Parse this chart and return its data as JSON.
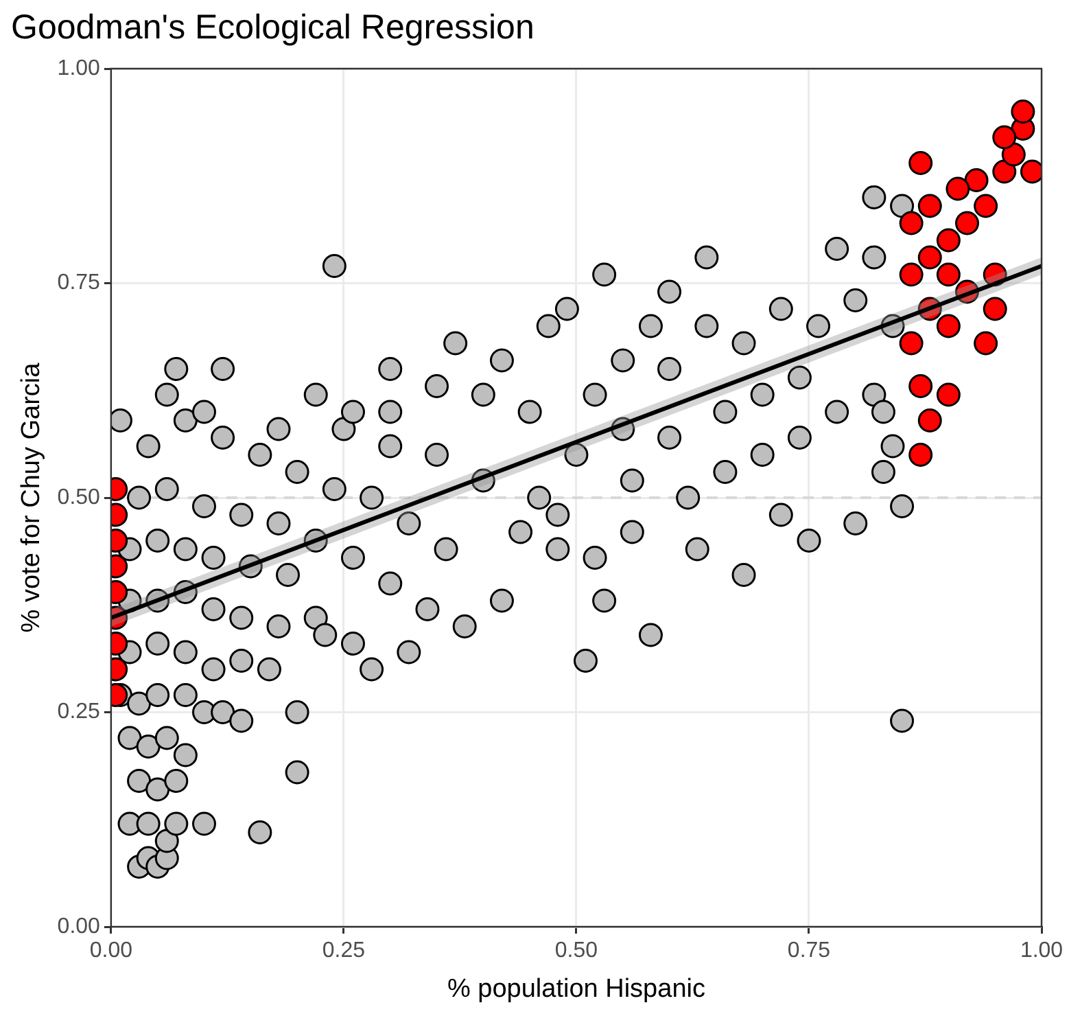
{
  "chart_data": {
    "type": "scatter",
    "title": "Goodman's Ecological Regression",
    "xlabel": "% population Hispanic",
    "ylabel": "% vote for Chuy Garcia",
    "xlim": [
      0,
      1
    ],
    "ylim": [
      0,
      1
    ],
    "xticks": [
      {
        "value": 0,
        "label": "0.00"
      },
      {
        "value": 0.25,
        "label": "0.25"
      },
      {
        "value": 0.5,
        "label": "0.50"
      },
      {
        "value": 0.75,
        "label": "0.75"
      },
      {
        "value": 1,
        "label": "1.00"
      }
    ],
    "yticks": [
      {
        "value": 0,
        "label": "0.00"
      },
      {
        "value": 0.25,
        "label": "0.25"
      },
      {
        "value": 0.5,
        "label": "0.50"
      },
      {
        "value": 0.75,
        "label": "0.75"
      },
      {
        "value": 1,
        "label": "1.00"
      }
    ],
    "grid": true,
    "legend": false,
    "marker": "circle",
    "ref_lines": [
      {
        "axis": "y",
        "value": 0.5,
        "color": "#d9d9d9",
        "line_style": "dashed"
      }
    ],
    "series": [
      {
        "type": "scatter",
        "color": "#bebebe",
        "x": [
          0.24,
          0.85,
          0.16,
          0.2,
          0.1,
          0.07,
          0.12,
          0.51,
          0.53,
          0.58,
          0.68,
          0.75,
          0.72,
          0.8,
          0.83,
          0.85,
          0.53,
          0.64,
          0.49,
          0.82,
          0.85,
          0.78,
          0.03,
          0.04,
          0.05,
          0.06,
          0.02,
          0.04,
          0.06,
          0.07,
          0.03,
          0.05,
          0.07,
          0.02,
          0.04,
          0.06,
          0.08,
          0.01,
          0.03,
          0.05,
          0.08,
          0.1,
          0.12,
          0.14,
          0.02,
          0.05,
          0.08,
          0.11,
          0.14,
          0.17,
          0.02,
          0.05,
          0.08,
          0.11,
          0.14,
          0.18,
          0.22,
          0.02,
          0.05,
          0.08,
          0.11,
          0.15,
          0.19,
          0.23,
          0.26,
          0.03,
          0.06,
          0.1,
          0.14,
          0.18,
          0.22,
          0.26,
          0.3,
          0.34,
          0.38,
          0.42,
          0.36,
          0.32,
          0.28,
          0.24,
          0.2,
          0.16,
          0.12,
          0.08,
          0.04,
          0.01,
          0.06,
          0.1,
          0.18,
          0.25,
          0.3,
          0.35,
          0.4,
          0.44,
          0.48,
          0.46,
          0.5,
          0.45,
          0.4,
          0.35,
          0.3,
          0.37,
          0.42,
          0.47,
          0.52,
          0.55,
          0.6,
          0.56,
          0.62,
          0.66,
          0.7,
          0.74,
          0.78,
          0.82,
          0.66,
          0.6,
          0.64,
          0.68,
          0.72,
          0.76,
          0.8,
          0.7,
          0.58,
          0.55,
          0.74,
          0.82,
          0.84,
          0.84,
          0.83,
          0.6,
          0.56,
          0.63,
          0.48,
          0.52,
          0.28,
          0.32,
          0.2,
          0.3,
          0.22,
          0.26
        ],
        "values": [
          0.77,
          0.24,
          0.11,
          0.18,
          0.12,
          0.65,
          0.65,
          0.31,
          0.38,
          0.34,
          0.41,
          0.45,
          0.48,
          0.47,
          0.53,
          0.49,
          0.76,
          0.78,
          0.72,
          0.85,
          0.84,
          0.79,
          0.07,
          0.08,
          0.07,
          0.08,
          0.12,
          0.12,
          0.1,
          0.12,
          0.17,
          0.16,
          0.17,
          0.22,
          0.21,
          0.22,
          0.2,
          0.27,
          0.26,
          0.27,
          0.27,
          0.25,
          0.25,
          0.24,
          0.32,
          0.33,
          0.32,
          0.3,
          0.31,
          0.3,
          0.38,
          0.38,
          0.39,
          0.37,
          0.36,
          0.35,
          0.36,
          0.44,
          0.45,
          0.44,
          0.43,
          0.42,
          0.41,
          0.34,
          0.33,
          0.5,
          0.51,
          0.49,
          0.48,
          0.47,
          0.45,
          0.43,
          0.4,
          0.37,
          0.35,
          0.38,
          0.44,
          0.47,
          0.5,
          0.51,
          0.53,
          0.55,
          0.57,
          0.59,
          0.56,
          0.59,
          0.62,
          0.6,
          0.58,
          0.58,
          0.56,
          0.55,
          0.52,
          0.46,
          0.44,
          0.5,
          0.55,
          0.6,
          0.62,
          0.63,
          0.65,
          0.68,
          0.66,
          0.7,
          0.62,
          0.58,
          0.57,
          0.52,
          0.5,
          0.53,
          0.55,
          0.57,
          0.6,
          0.62,
          0.6,
          0.65,
          0.7,
          0.68,
          0.72,
          0.7,
          0.73,
          0.62,
          0.7,
          0.66,
          0.64,
          0.78,
          0.7,
          0.56,
          0.6,
          0.74,
          0.46,
          0.44,
          0.48,
          0.43,
          0.3,
          0.32,
          0.25,
          0.6,
          0.62,
          0.6
        ]
      },
      {
        "type": "scatter",
        "color": "#ff0000",
        "x": [
          0.005,
          0.005,
          0.005,
          0.005,
          0.005,
          0.005,
          0.005,
          0.005,
          0.005,
          0.87,
          0.87,
          0.88,
          0.87,
          0.9,
          0.86,
          0.88,
          0.9,
          0.94,
          0.95,
          0.86,
          0.88,
          0.9,
          0.92,
          0.95,
          0.86,
          0.88,
          0.9,
          0.92,
          0.94,
          0.93,
          0.96,
          0.97,
          0.98,
          0.98,
          0.96,
          0.99,
          0.91
        ],
        "values": [
          0.27,
          0.3,
          0.33,
          0.36,
          0.39,
          0.42,
          0.45,
          0.48,
          0.51,
          0.89,
          0.55,
          0.59,
          0.63,
          0.62,
          0.68,
          0.72,
          0.7,
          0.68,
          0.72,
          0.76,
          0.78,
          0.76,
          0.74,
          0.76,
          0.82,
          0.84,
          0.8,
          0.82,
          0.84,
          0.87,
          0.88,
          0.9,
          0.93,
          0.95,
          0.92,
          0.88,
          0.86
        ]
      },
      {
        "type": "line",
        "color": "#000000",
        "marker": "none",
        "x": [
          0,
          1
        ],
        "values": [
          0.36,
          0.77
        ],
        "lower": [
          0.35,
          0.76
        ],
        "upper": [
          0.37,
          0.78
        ]
      }
    ]
  }
}
